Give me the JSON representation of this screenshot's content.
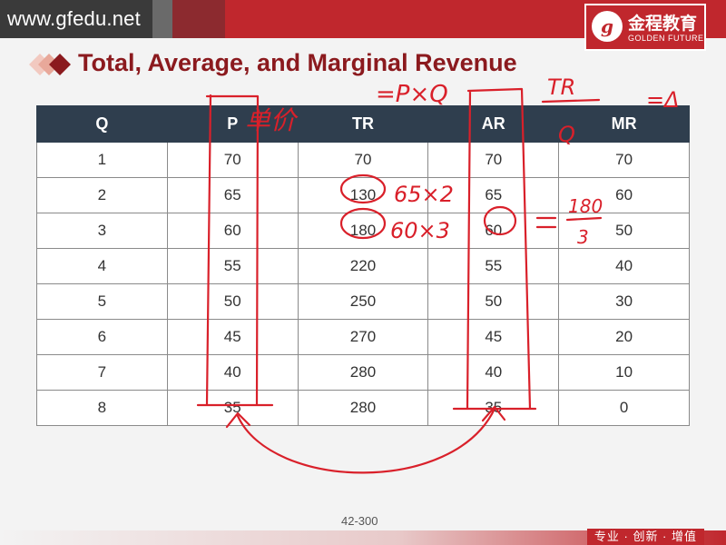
{
  "header": {
    "site": "www.gfedu.net",
    "logo_seal": "g",
    "logo_cn": "金程教育",
    "logo_en": "GOLDEN FUTURE"
  },
  "title": "Total, Average, and Marginal Revenue",
  "table": {
    "columns": [
      "Q",
      "P",
      "TR",
      "AR",
      "MR"
    ],
    "rows": [
      [
        "1",
        "70",
        "70",
        "70",
        "70"
      ],
      [
        "2",
        "65",
        "130",
        "65",
        "60"
      ],
      [
        "3",
        "60",
        "180",
        "60",
        "50"
      ],
      [
        "4",
        "55",
        "220",
        "55",
        "40"
      ],
      [
        "5",
        "50",
        "250",
        "50",
        "30"
      ],
      [
        "6",
        "45",
        "270",
        "45",
        "20"
      ],
      [
        "7",
        "40",
        "280",
        "40",
        "10"
      ],
      [
        "8",
        "35",
        "280",
        "35",
        "0"
      ]
    ]
  },
  "annotations": {
    "p_label": "单价",
    "tr_formula": "=P×Q",
    "ar_formula_num": "TR",
    "ar_formula_den": "Q",
    "mr_note": "=Δ",
    "row2_note": "65×2",
    "row3_note": "60×3",
    "ar_calc_num": "180",
    "ar_calc_den": "3"
  },
  "footer": {
    "page": "42-300",
    "slogan": "专业 · 创新 · 增值"
  },
  "colors": {
    "header_bg": "#3a3a3a",
    "brand_red": "#c0272d",
    "title_red": "#8b1a1e",
    "table_header": "#2f3e4e",
    "ink": "#d9202a"
  }
}
